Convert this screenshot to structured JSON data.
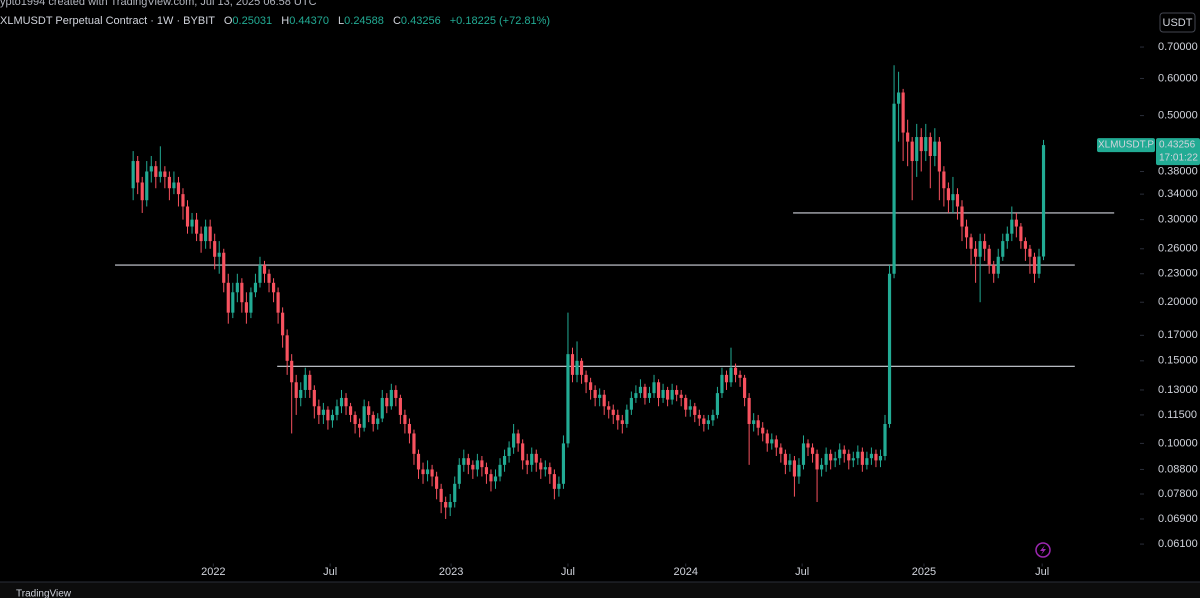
{
  "header": {
    "watermark": "ypto1994 created with TradingView.com, Jul 13, 2025 06:58 UTC",
    "symbol": "XLMUSDT Perpetual Contract · 1W · BYBIT",
    "ohlc": [
      {
        "key": "O",
        "value": "0.25031"
      },
      {
        "key": "H",
        "value": "0.44370"
      },
      {
        "key": "L",
        "value": "0.24588"
      },
      {
        "key": "C",
        "value": "0.43256"
      }
    ],
    "change": "+0.18225 (+72.81%)",
    "currency": "USDT",
    "countdown": "17:01:22"
  },
  "footer": {
    "brand": "TradingView"
  },
  "chart_data": {
    "type": "candlestick",
    "name": "XLMUSDT.P",
    "log_scale": true,
    "up_color": "#22ab94",
    "down_color": "#f7525f",
    "line_color": "#d1d4dc",
    "ylim": [
      0.056,
      0.76
    ],
    "yticks": [
      {
        "value": 0.7,
        "label": "0.70000"
      },
      {
        "value": 0.6,
        "label": "0.60000"
      },
      {
        "value": 0.5,
        "label": "0.50000"
      },
      {
        "value": 0.38,
        "label": "0.38000"
      },
      {
        "value": 0.34,
        "label": "0.34000"
      },
      {
        "value": 0.3,
        "label": "0.30000"
      },
      {
        "value": 0.26,
        "label": "0.26000"
      },
      {
        "value": 0.23,
        "label": "0.23000"
      },
      {
        "value": 0.2,
        "label": "0.20000"
      },
      {
        "value": 0.17,
        "label": "0.17000"
      },
      {
        "value": 0.15,
        "label": "0.15000"
      },
      {
        "value": 0.13,
        "label": "0.13000"
      },
      {
        "value": 0.115,
        "label": "0.11500"
      },
      {
        "value": 0.1,
        "label": "0.10000"
      },
      {
        "value": 0.088,
        "label": "0.08800"
      },
      {
        "value": 0.078,
        "label": "0.07800"
      },
      {
        "value": 0.069,
        "label": "0.06900"
      },
      {
        "value": 0.061,
        "label": "0.06100"
      }
    ],
    "xlim": [
      -29.4,
      222.3
    ],
    "xticks": [
      {
        "value": 17.7,
        "label": "2022"
      },
      {
        "value": 43.5,
        "label": "Jul"
      },
      {
        "value": 70.2,
        "label": "2023"
      },
      {
        "value": 96,
        "label": "Jul"
      },
      {
        "value": 122,
        "label": "2024"
      },
      {
        "value": 147.7,
        "label": "Jul"
      },
      {
        "value": 174.6,
        "label": "2025"
      },
      {
        "value": 200.7,
        "label": "Jul"
      }
    ],
    "hlines": [
      {
        "value": 0.31,
        "xlim": [
          145.7,
          216.6
        ]
      },
      {
        "value": 0.24,
        "xlim": [
          -4,
          207.9
        ]
      },
      {
        "value": 0.146,
        "xlim": [
          31.8,
          207.9
        ]
      }
    ],
    "open": [
      0.35,
      0.4,
      0.36,
      0.33,
      0.38,
      0.39,
      0.37,
      0.38,
      0.37,
      0.35,
      0.36,
      0.34,
      0.32,
      0.29,
      0.3,
      0.28,
      0.27,
      0.29,
      0.27,
      0.25,
      0.255,
      0.22,
      0.19,
      0.21,
      0.22,
      0.2,
      0.19,
      0.21,
      0.22,
      0.24,
      0.23,
      0.22,
      0.21,
      0.19,
      0.17,
      0.15,
      0.135,
      0.125,
      0.13,
      0.14,
      0.13,
      0.12,
      0.115,
      0.118,
      0.112,
      0.115,
      0.12,
      0.125,
      0.12,
      0.115,
      0.11,
      0.108,
      0.12,
      0.115,
      0.11,
      0.113,
      0.125,
      0.12,
      0.13,
      0.125,
      0.115,
      0.11,
      0.105,
      0.095,
      0.088,
      0.086,
      0.088,
      0.085,
      0.08,
      0.075,
      0.073,
      0.075,
      0.082,
      0.09,
      0.093,
      0.09,
      0.088,
      0.092,
      0.089,
      0.086,
      0.083,
      0.085,
      0.09,
      0.094,
      0.098,
      0.105,
      0.1,
      0.092,
      0.09,
      0.095,
      0.091,
      0.088,
      0.089,
      0.086,
      0.08,
      0.082,
      0.1,
      0.155,
      0.14,
      0.15,
      0.14,
      0.135,
      0.13,
      0.125,
      0.127,
      0.12,
      0.118,
      0.115,
      0.112,
      0.11,
      0.118,
      0.125,
      0.128,
      0.132,
      0.125,
      0.128,
      0.135,
      0.125,
      0.13,
      0.124,
      0.13,
      0.127,
      0.125,
      0.118,
      0.12,
      0.115,
      0.113,
      0.11,
      0.112,
      0.115,
      0.128,
      0.14,
      0.135,
      0.145,
      0.14,
      0.138,
      0.125,
      0.11,
      0.112,
      0.108,
      0.105,
      0.1,
      0.102,
      0.098,
      0.095,
      0.09,
      0.092,
      0.085,
      0.09,
      0.1,
      0.098,
      0.095,
      0.088,
      0.09,
      0.095,
      0.092,
      0.093,
      0.097,
      0.095,
      0.092,
      0.093,
      0.096,
      0.09,
      0.093,
      0.095,
      0.092,
      0.094,
      0.11,
      0.23,
      0.53,
      0.56,
      0.46,
      0.44,
      0.4,
      0.45,
      0.42,
      0.45,
      0.41,
      0.44,
      0.38,
      0.35,
      0.33,
      0.34,
      0.32,
      0.29,
      0.275,
      0.26,
      0.25,
      0.27,
      0.26,
      0.24,
      0.23,
      0.25,
      0.27,
      0.28,
      0.3,
      0.29,
      0.27,
      0.26,
      0.25,
      0.23,
      0.25031
    ],
    "high": [
      0.42,
      0.41,
      0.37,
      0.4,
      0.41,
      0.4,
      0.43,
      0.39,
      0.38,
      0.38,
      0.37,
      0.35,
      0.33,
      0.31,
      0.31,
      0.29,
      0.3,
      0.3,
      0.28,
      0.27,
      0.26,
      0.23,
      0.22,
      0.23,
      0.225,
      0.21,
      0.215,
      0.23,
      0.25,
      0.245,
      0.235,
      0.225,
      0.215,
      0.195,
      0.175,
      0.155,
      0.14,
      0.135,
      0.145,
      0.143,
      0.133,
      0.124,
      0.122,
      0.12,
      0.118,
      0.124,
      0.13,
      0.128,
      0.122,
      0.117,
      0.113,
      0.124,
      0.123,
      0.117,
      0.116,
      0.13,
      0.128,
      0.134,
      0.133,
      0.127,
      0.118,
      0.113,
      0.107,
      0.097,
      0.091,
      0.092,
      0.09,
      0.087,
      0.082,
      0.077,
      0.078,
      0.085,
      0.093,
      0.097,
      0.095,
      0.092,
      0.095,
      0.094,
      0.091,
      0.088,
      0.088,
      0.093,
      0.097,
      0.101,
      0.11,
      0.107,
      0.102,
      0.095,
      0.098,
      0.097,
      0.093,
      0.092,
      0.091,
      0.088,
      0.085,
      0.104,
      0.19,
      0.16,
      0.165,
      0.152,
      0.143,
      0.138,
      0.133,
      0.131,
      0.13,
      0.123,
      0.121,
      0.118,
      0.115,
      0.121,
      0.129,
      0.133,
      0.137,
      0.134,
      0.132,
      0.14,
      0.137,
      0.134,
      0.132,
      0.134,
      0.133,
      0.13,
      0.127,
      0.124,
      0.122,
      0.118,
      0.115,
      0.115,
      0.118,
      0.132,
      0.145,
      0.143,
      0.16,
      0.148,
      0.143,
      0.14,
      0.128,
      0.116,
      0.115,
      0.111,
      0.107,
      0.105,
      0.104,
      0.1,
      0.097,
      0.095,
      0.094,
      0.093,
      0.104,
      0.102,
      0.1,
      0.097,
      0.093,
      0.098,
      0.097,
      0.096,
      0.1,
      0.099,
      0.097,
      0.096,
      0.099,
      0.098,
      0.096,
      0.098,
      0.097,
      0.097,
      0.115,
      0.24,
      0.64,
      0.62,
      0.57,
      0.49,
      0.45,
      0.48,
      0.47,
      0.48,
      0.46,
      0.47,
      0.45,
      0.39,
      0.36,
      0.37,
      0.35,
      0.33,
      0.3,
      0.28,
      0.27,
      0.28,
      0.28,
      0.265,
      0.245,
      0.26,
      0.28,
      0.29,
      0.32,
      0.31,
      0.295,
      0.275,
      0.265,
      0.255,
      0.26,
      0.4437
    ],
    "low": [
      0.33,
      0.34,
      0.31,
      0.32,
      0.36,
      0.35,
      0.36,
      0.35,
      0.33,
      0.34,
      0.32,
      0.3,
      0.28,
      0.28,
      0.27,
      0.255,
      0.26,
      0.26,
      0.235,
      0.23,
      0.21,
      0.18,
      0.185,
      0.2,
      0.19,
      0.18,
      0.185,
      0.205,
      0.215,
      0.22,
      0.21,
      0.2,
      0.18,
      0.16,
      0.14,
      0.105,
      0.115,
      0.12,
      0.125,
      0.125,
      0.113,
      0.11,
      0.11,
      0.107,
      0.108,
      0.112,
      0.116,
      0.115,
      0.111,
      0.105,
      0.103,
      0.106,
      0.111,
      0.106,
      0.107,
      0.111,
      0.116,
      0.118,
      0.12,
      0.11,
      0.105,
      0.1,
      0.09,
      0.084,
      0.082,
      0.083,
      0.081,
      0.076,
      0.071,
      0.069,
      0.07,
      0.073,
      0.08,
      0.087,
      0.086,
      0.084,
      0.085,
      0.085,
      0.082,
      0.079,
      0.08,
      0.083,
      0.087,
      0.091,
      0.095,
      0.096,
      0.088,
      0.086,
      0.087,
      0.087,
      0.084,
      0.085,
      0.082,
      0.076,
      0.077,
      0.08,
      0.098,
      0.135,
      0.135,
      0.134,
      0.128,
      0.124,
      0.12,
      0.12,
      0.115,
      0.113,
      0.11,
      0.107,
      0.105,
      0.108,
      0.115,
      0.122,
      0.125,
      0.121,
      0.122,
      0.125,
      0.12,
      0.122,
      0.12,
      0.121,
      0.123,
      0.12,
      0.114,
      0.114,
      0.111,
      0.109,
      0.106,
      0.107,
      0.109,
      0.113,
      0.125,
      0.13,
      0.132,
      0.135,
      0.132,
      0.12,
      0.09,
      0.106,
      0.104,
      0.101,
      0.096,
      0.097,
      0.094,
      0.091,
      0.086,
      0.087,
      0.077,
      0.082,
      0.088,
      0.094,
      0.091,
      0.075,
      0.085,
      0.087,
      0.088,
      0.089,
      0.09,
      0.091,
      0.088,
      0.089,
      0.09,
      0.087,
      0.088,
      0.09,
      0.089,
      0.089,
      0.092,
      0.108,
      0.225,
      0.44,
      0.4,
      0.39,
      0.33,
      0.37,
      0.38,
      0.4,
      0.35,
      0.39,
      0.33,
      0.32,
      0.31,
      0.31,
      0.3,
      0.27,
      0.26,
      0.24,
      0.22,
      0.2,
      0.245,
      0.23,
      0.22,
      0.225,
      0.245,
      0.26,
      0.27,
      0.275,
      0.26,
      0.245,
      0.23,
      0.22,
      0.225,
      0.24588
    ],
    "close": [
      0.4,
      0.36,
      0.33,
      0.38,
      0.39,
      0.37,
      0.38,
      0.37,
      0.35,
      0.36,
      0.34,
      0.32,
      0.29,
      0.3,
      0.28,
      0.27,
      0.29,
      0.27,
      0.25,
      0.255,
      0.22,
      0.19,
      0.21,
      0.22,
      0.2,
      0.19,
      0.21,
      0.22,
      0.24,
      0.23,
      0.22,
      0.21,
      0.19,
      0.17,
      0.15,
      0.135,
      0.125,
      0.13,
      0.14,
      0.13,
      0.12,
      0.115,
      0.118,
      0.112,
      0.115,
      0.12,
      0.125,
      0.12,
      0.115,
      0.11,
      0.108,
      0.12,
      0.115,
      0.11,
      0.113,
      0.125,
      0.12,
      0.13,
      0.125,
      0.115,
      0.11,
      0.105,
      0.095,
      0.088,
      0.086,
      0.088,
      0.085,
      0.08,
      0.075,
      0.073,
      0.075,
      0.082,
      0.09,
      0.093,
      0.09,
      0.088,
      0.092,
      0.089,
      0.086,
      0.083,
      0.085,
      0.09,
      0.094,
      0.098,
      0.105,
      0.1,
      0.092,
      0.09,
      0.095,
      0.091,
      0.088,
      0.089,
      0.086,
      0.08,
      0.082,
      0.1,
      0.155,
      0.14,
      0.15,
      0.14,
      0.135,
      0.13,
      0.125,
      0.127,
      0.12,
      0.118,
      0.115,
      0.112,
      0.11,
      0.118,
      0.125,
      0.128,
      0.132,
      0.125,
      0.128,
      0.135,
      0.125,
      0.13,
      0.124,
      0.13,
      0.127,
      0.125,
      0.118,
      0.12,
      0.115,
      0.113,
      0.11,
      0.112,
      0.115,
      0.128,
      0.14,
      0.135,
      0.145,
      0.14,
      0.138,
      0.125,
      0.11,
      0.112,
      0.108,
      0.105,
      0.1,
      0.102,
      0.098,
      0.095,
      0.09,
      0.092,
      0.085,
      0.09,
      0.1,
      0.098,
      0.095,
      0.088,
      0.09,
      0.095,
      0.092,
      0.093,
      0.097,
      0.095,
      0.092,
      0.093,
      0.096,
      0.09,
      0.093,
      0.095,
      0.092,
      0.094,
      0.11,
      0.23,
      0.53,
      0.56,
      0.46,
      0.44,
      0.4,
      0.45,
      0.42,
      0.45,
      0.41,
      0.44,
      0.38,
      0.35,
      0.33,
      0.34,
      0.32,
      0.29,
      0.275,
      0.26,
      0.25,
      0.27,
      0.26,
      0.24,
      0.23,
      0.25,
      0.27,
      0.28,
      0.3,
      0.29,
      0.27,
      0.26,
      0.25,
      0.23,
      0.25031,
      0.43256
    ]
  }
}
